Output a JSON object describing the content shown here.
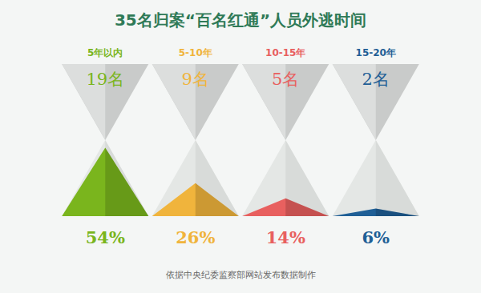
{
  "chart_data": {
    "type": "bar",
    "title": "35名归案“百名红通”人员外逃时间",
    "note": "依据中央纪委监察部网站发布数据制作",
    "categories": [
      "5年以内",
      "5-10年",
      "10-15年",
      "15-20年"
    ],
    "values": [
      54,
      26,
      14,
      6
    ],
    "value_labels": [
      "54%",
      "26%",
      "14%",
      "6%"
    ],
    "counts": [
      19,
      9,
      5,
      2
    ],
    "count_labels": [
      "19名",
      "9名",
      "5名",
      "2名"
    ],
    "colors": [
      "#7ab51d",
      "#f0b43c",
      "#e8605f",
      "#1f5f96"
    ],
    "data_labels": true,
    "tick_labels": false
  }
}
